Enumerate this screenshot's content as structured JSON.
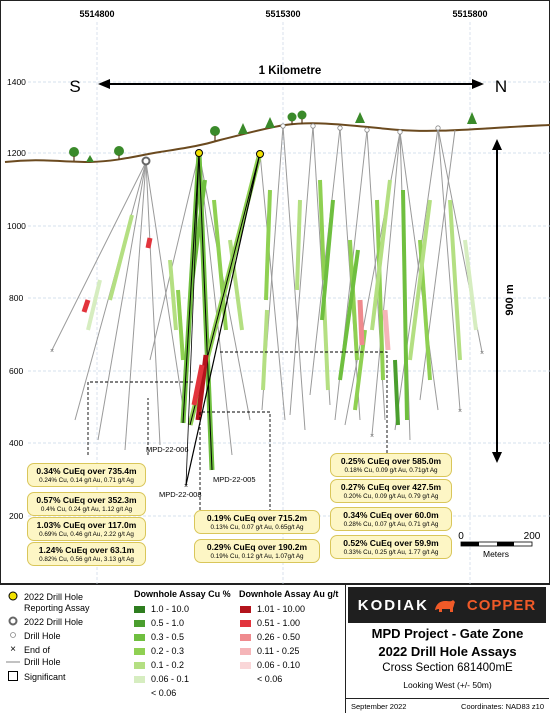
{
  "map": {
    "easting_labels": [
      "5514800",
      "5515300",
      "5515800"
    ],
    "elevation_labels": [
      "1400",
      "1200",
      "1000",
      "800",
      "600",
      "400",
      "200"
    ],
    "direction_left": "S",
    "direction_right": "N",
    "width_label": "1 Kilometre",
    "depth_label": "900 m",
    "scale_ticks": [
      "0",
      "200"
    ],
    "scale_unit": "Meters",
    "hole_labels": [
      "MPD-22-006",
      "MPD-22-005",
      "MPD-22-008"
    ],
    "colors": {
      "topography": "#6b4a1f",
      "drill_trace": "#9a9a9a",
      "drill_2022": "#000000",
      "reporting_collar": "#f2e200",
      "cu_high": "#2e7d1f",
      "cu_mid": "#6fbf3f",
      "au_high": "#b3141c",
      "au_mid": "#ef4f57",
      "callout_fill": "#fdf6c5"
    }
  },
  "callouts_left": [
    {
      "headline": "0.34% CuEq over 735.4m",
      "detail": "0.24% Cu, 0.14 g/t Au, 0.71 g/t Ag"
    },
    {
      "headline": "0.57% CuEq over 352.3m",
      "detail": "0.4% Cu, 0.24 g/t Au, 1.12 g/t Ag"
    },
    {
      "headline": "1.03% CuEq over 117.0m",
      "detail": "0.69% Cu, 0.46 g/t Au, 2.22 g/t Ag"
    },
    {
      "headline": "1.24% CuEq over 63.1m",
      "detail": "0.82% Cu, 0.56 g/t Au, 3.13 g/t Ag"
    }
  ],
  "callouts_mid": [
    {
      "headline": "0.19% CuEq over 715.2m",
      "detail": "0.13% Cu, 0.07 g/t Au, 0.65g/t Ag"
    },
    {
      "headline": "0.29% CuEq over 190.2m",
      "detail": "0.19% Cu, 0.12 g/t Au, 1.07g/t Ag"
    }
  ],
  "callouts_right": [
    {
      "headline": "0.25% CuEq over 585.0m",
      "detail": "0.18% Cu, 0.09 g/t Au, 0.71g/t Ag"
    },
    {
      "headline": "0.27% CuEq over 427.5m",
      "detail": "0.20% Cu, 0.09 g/t Au, 0.79 g/t Ag"
    },
    {
      "headline": "0.34% CuEq over 60.0m",
      "detail": "0.28% Cu, 0.07 g/t Au, 0.71 g/t Ag"
    },
    {
      "headline": "0.52% CuEq over 59.9m",
      "detail": "0.33% Cu, 0.25 g/t Au, 1.77 g/t Ag"
    }
  ],
  "legend": {
    "symbols": [
      {
        "label": "2022 Drill Hole",
        "label2": "Reporting Assay"
      },
      {
        "label": "2022 Drill Hole"
      },
      {
        "label": "Drill Hole"
      },
      {
        "label": "End of"
      },
      {
        "label": "Drill Hole"
      },
      {
        "label": "Significant"
      }
    ],
    "cu_title": "Downhole Assay Cu %",
    "cu_classes": [
      {
        "label": "1.0 - 10.0",
        "color": "#2e7d1f"
      },
      {
        "label": "0.5 - 1.0",
        "color": "#4a9e2e"
      },
      {
        "label": "0.3 - 0.5",
        "color": "#6fbf3f"
      },
      {
        "label": "0.2 - 0.3",
        "color": "#8fd052"
      },
      {
        "label": "0.1 - 0.2",
        "color": "#b4df82"
      },
      {
        "label": "0.06 - 0.1",
        "color": "#d6edc0"
      },
      {
        "label": "< 0.06",
        "color": ""
      }
    ],
    "au_title": "Downhole Assay Au g/t",
    "au_classes": [
      {
        "label": "1.01 - 10.00",
        "color": "#b3141c"
      },
      {
        "label": "0.51 - 1.00",
        "color": "#e2343c"
      },
      {
        "label": "0.26 - 0.50",
        "color": "#ef8a8e"
      },
      {
        "label": "0.11 - 0.25",
        "color": "#f5b5b8"
      },
      {
        "label": "0.06 - 0.10",
        "color": "#fad6d8"
      },
      {
        "label": "< 0.06",
        "color": ""
      }
    ]
  },
  "title_block": {
    "brand_left": "KODIAK",
    "brand_right": "COPPER",
    "project": "MPD Project - Gate Zone",
    "subtitle": "2022 Drill Hole Assays",
    "section": "Cross Section 681400mE",
    "view": "Looking West (+/- 50m)",
    "date": "September 2022",
    "coords": "Coordinates: NAD83 z10"
  }
}
